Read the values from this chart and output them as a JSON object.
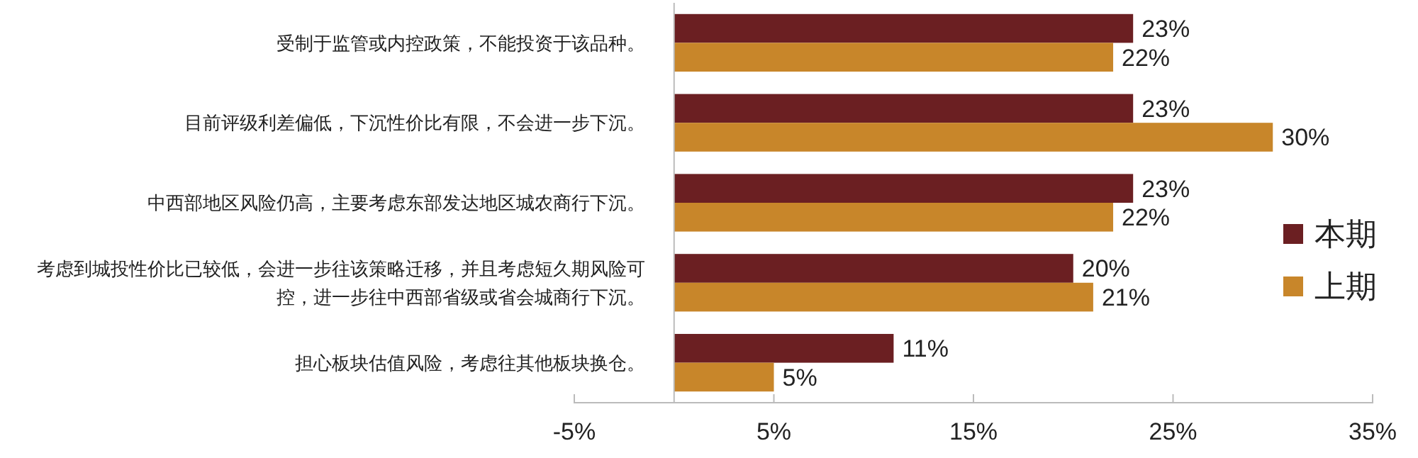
{
  "chart_data": {
    "type": "bar",
    "orientation": "horizontal",
    "categories": [
      "受制于监管或内控政策，不能投资于该品种。",
      "目前评级利差偏低，下沉性价比有限，不会进一步下沉。",
      "中西部地区风险仍高，主要考虑东部发达地区城农商行下沉。",
      "考虑到城投性价比已较低，会进一步往该策略迁移，并且考虑短久期风险可控，进一步往中西部省级或省会城商行下沉。",
      "担心板块估值风险，考虑往其他板块换仓。"
    ],
    "series": [
      {
        "name": "本期",
        "color": "#6b1f22",
        "values": [
          23,
          23,
          23,
          20,
          11
        ],
        "value_labels": [
          "23%",
          "23%",
          "23%",
          "20%",
          "11%"
        ]
      },
      {
        "name": "上期",
        "color": "#c8862a",
        "values": [
          22,
          30,
          22,
          21,
          5
        ],
        "value_labels": [
          "22%",
          "30%",
          "22%",
          "21%",
          "5%"
        ]
      }
    ],
    "xlim": [
      -5,
      35
    ],
    "xticks": [
      {
        "value": -5,
        "label": "-5%"
      },
      {
        "value": 5,
        "label": "5%"
      },
      {
        "value": 15,
        "label": "15%"
      },
      {
        "value": 25,
        "label": "25%"
      },
      {
        "value": 35,
        "label": "35%"
      }
    ],
    "legend": "right",
    "grid": false
  }
}
